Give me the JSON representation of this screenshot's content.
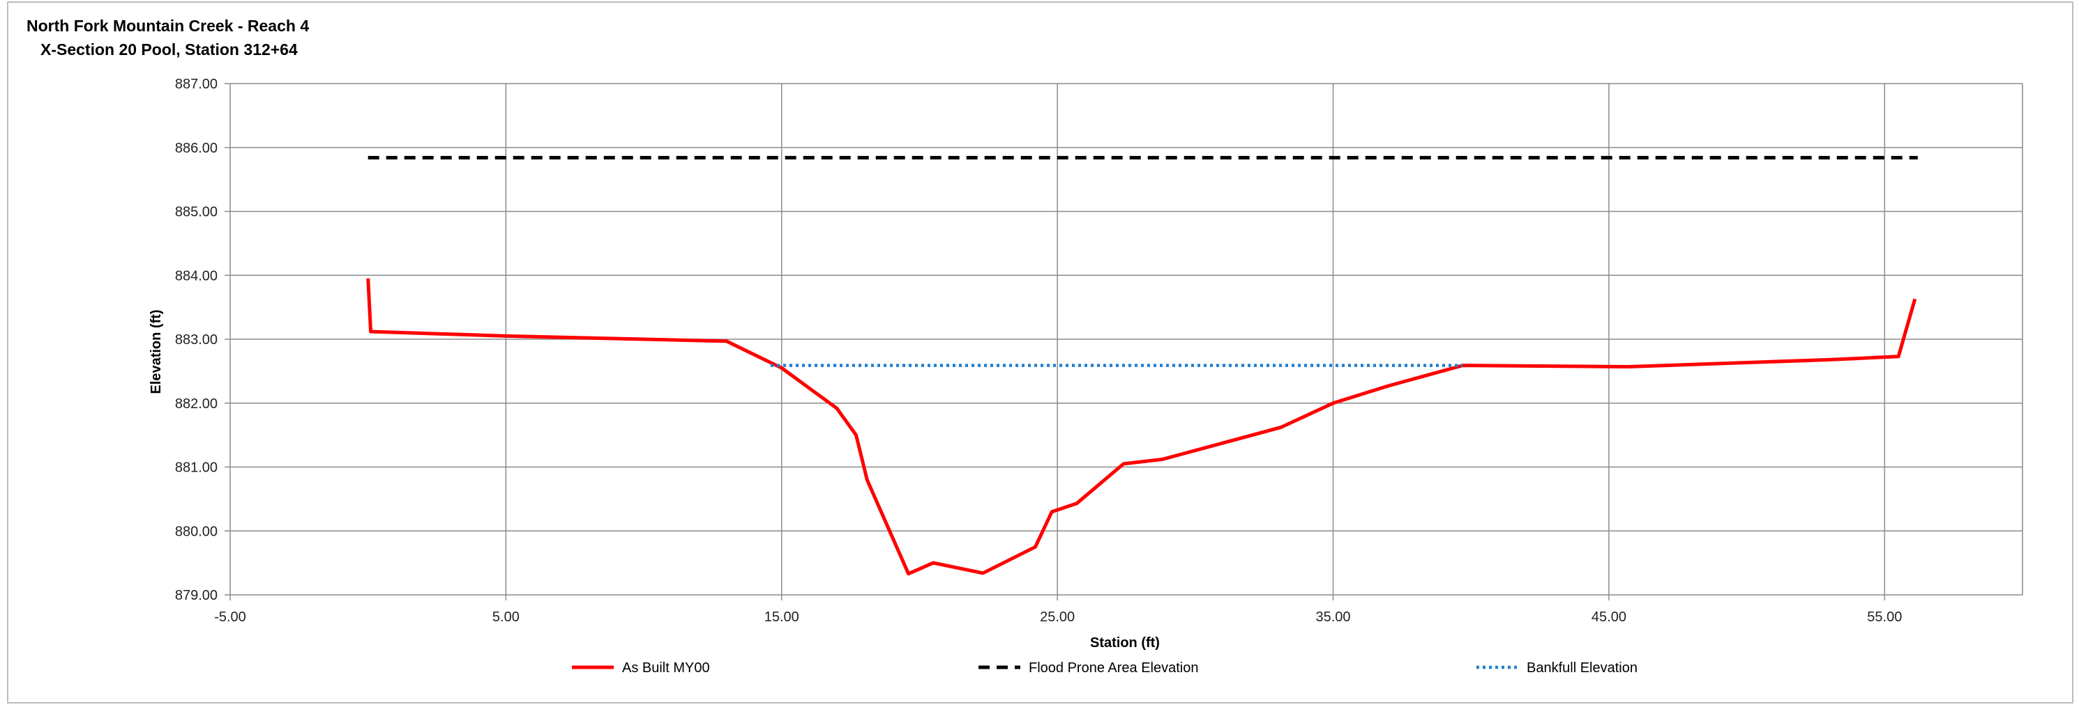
{
  "chart_data": {
    "type": "line",
    "title": [
      "North Fork Mountain Creek - Reach 4",
      "X-Section 20 Pool, Station 312+64"
    ],
    "xlabel": "Station (ft)",
    "ylabel": "Elevation (ft)",
    "xlim": [
      -5,
      60
    ],
    "ylim": [
      879,
      887
    ],
    "xticks": [
      -5,
      5,
      15,
      25,
      35,
      45,
      55
    ],
    "xtick_labels": [
      "-5.00",
      "5.00",
      "15.00",
      "25.00",
      "35.00",
      "45.00",
      "55.00"
    ],
    "yticks": [
      879,
      880,
      881,
      882,
      883,
      884,
      885,
      886,
      887
    ],
    "ytick_labels": [
      "879.00",
      "880.00",
      "881.00",
      "882.00",
      "883.00",
      "884.00",
      "885.00",
      "886.00",
      "887.00"
    ],
    "grid": true,
    "legend_position": "bottom",
    "series": [
      {
        "name": "As Built MY00",
        "color": "#ff0000",
        "style": "solid",
        "x": [
          0.0,
          0.1,
          5.0,
          10.0,
          13.0,
          15.0,
          17.0,
          17.7,
          18.1,
          19.6,
          20.5,
          22.3,
          24.2,
          24.8,
          25.7,
          27.4,
          28.8,
          33.1,
          35.0,
          37.0,
          39.7,
          45.7,
          53.0,
          55.5,
          56.1
        ],
        "y": [
          883.95,
          883.12,
          883.05,
          883.0,
          882.97,
          882.55,
          881.92,
          881.5,
          880.8,
          879.33,
          879.5,
          879.34,
          879.75,
          880.3,
          880.43,
          881.05,
          881.12,
          881.62,
          882.0,
          882.27,
          882.59,
          882.57,
          882.68,
          882.73,
          883.63
        ]
      },
      {
        "name": "Flood Prone Area Elevation",
        "color": "#000000",
        "style": "dashed",
        "x": [
          0.0,
          56.2
        ],
        "y": [
          885.84,
          885.84
        ]
      },
      {
        "name": "Bankfull Elevation",
        "color": "#1f7fd1",
        "style": "dotted",
        "x": [
          14.6,
          39.7
        ],
        "y": [
          882.59,
          882.59
        ]
      }
    ]
  }
}
